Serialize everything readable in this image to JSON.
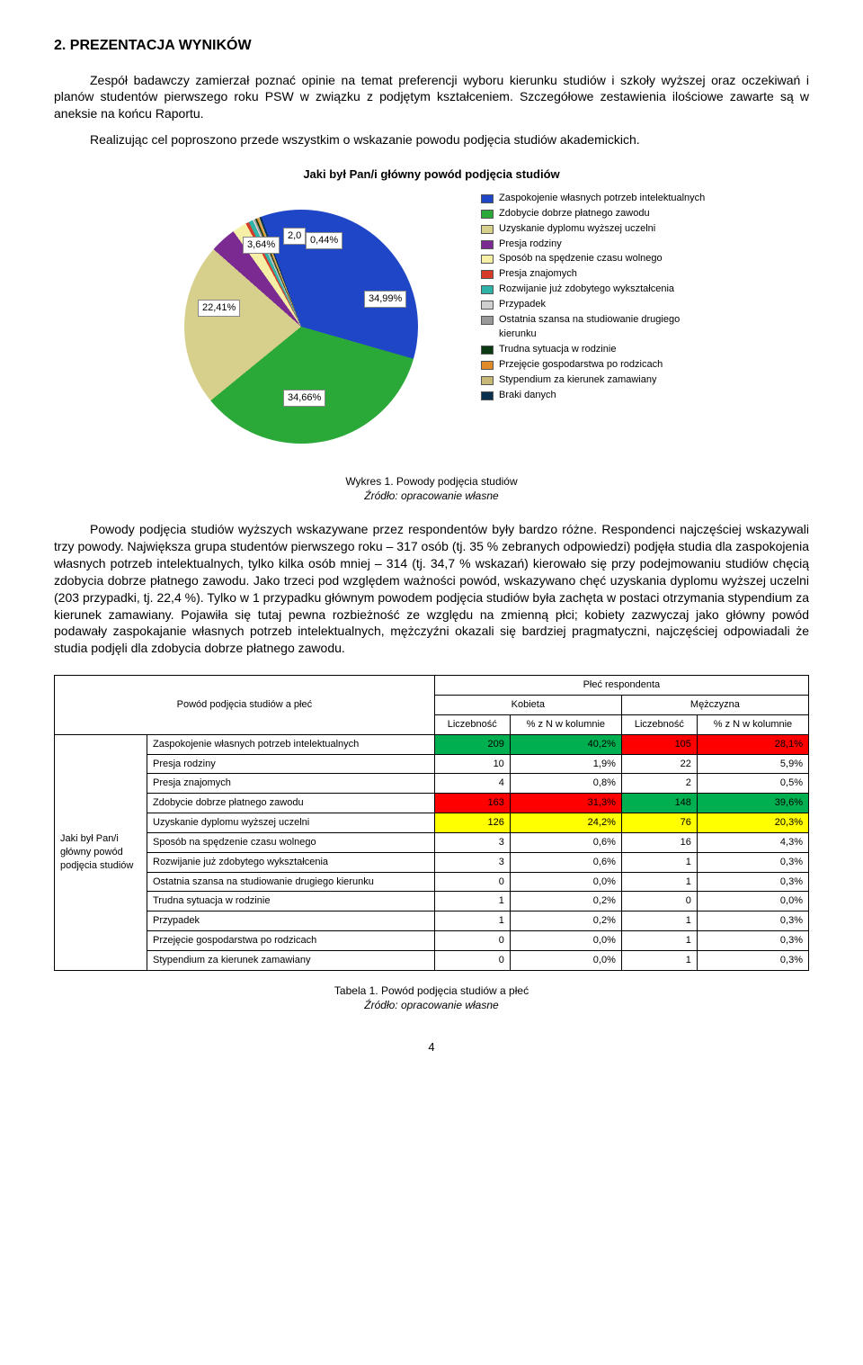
{
  "heading": "2. PREZENTACJA WYNIKÓW",
  "para1": "Zespół badawczy zamierzał poznać opinie na temat preferencji wyboru kierunku studiów i szkoły wyższej oraz oczekiwań i planów studentów pierwszego roku PSW w związku z podjętym kształceniem. Szczegółowe zestawienia ilościowe zawarte są w aneksie na końcu Raportu.",
  "para1b": "Realizując cel poproszono przede wszystkim o wskazanie powodu podjęcia studiów akademickich.",
  "chart": {
    "title": "Jaki był Pan/i główny powód podjęcia studiów",
    "slices": [
      {
        "label": "Zaspokojenie własnych potrzeb intelektualnych",
        "pct": 34.99,
        "color": "#2046c8"
      },
      {
        "label": "Zdobycie dobrze płatnego zawodu",
        "pct": 34.66,
        "color": "#2aa838"
      },
      {
        "label": "Uzyskanie dyplomu wyższej uczelni",
        "pct": 22.41,
        "color": "#d7cf8c"
      },
      {
        "label": "Presja rodziny",
        "pct": 3.64,
        "color": "#7a2a90"
      },
      {
        "label": "Sposób na spędzenie czasu wolnego",
        "pct": 2.0,
        "color": "#f6f0a6"
      },
      {
        "label": "Presja znajomych",
        "pct": 0.44,
        "color": "#d63a2a"
      },
      {
        "label": "Rozwijanie już zdobytego wykształcenia",
        "pct": 0.6,
        "color": "#2fb3a6"
      },
      {
        "label": "Przypadek",
        "pct": 0.2,
        "color": "#cfcfcf"
      },
      {
        "label": "Ostatnia szansa na studiowanie drugiego kierunku",
        "pct": 0.2,
        "color": "#999999"
      },
      {
        "label": "Trudna sytuacja w rodzinie",
        "pct": 0.2,
        "color": "#0a3a14"
      },
      {
        "label": "Przejęcie gospodarstwa po rodzicach",
        "pct": 0.2,
        "color": "#e08a2a"
      },
      {
        "label": "Stypendium za kierunek zamawiany",
        "pct": 0.2,
        "color": "#c8b878"
      },
      {
        "label": "Braki danych",
        "pct": 0.26,
        "color": "#0a3050"
      }
    ],
    "visible_labels": {
      "a": "34,99%",
      "b": "34,66%",
      "c": "22,41%",
      "d": "3,64%",
      "e": "2,0",
      "f": "0,44%"
    }
  },
  "caption1_a": "Wykres 1. Powody podjęcia studiów",
  "caption1_b": "Źródło: opracowanie własne",
  "para2": "Powody podjęcia studiów wyższych wskazywane przez respondentów były bardzo różne. Respondenci najczęściej wskazywali trzy powody. Największa grupa studentów pierwszego roku – 317 osób (tj. 35 % zebranych odpowiedzi) podjęła studia dla zaspokojenia własnych potrzeb intelektualnych, tylko kilka osób mniej – 314 (tj. 34,7 % wskazań) kierowało się przy podejmowaniu studiów chęcią zdobycia dobrze płatnego zawodu. Jako trzeci pod względem ważności powód, wskazywano chęć uzyskania dyplomu wyższej uczelni (203 przypadki, tj. 22,4 %). Tylko w 1 przypadku głównym powodem podjęcia studiów była zachęta w postaci otrzymania stypendium za kierunek zamawiany. Pojawiła się tutaj pewna rozbieżność ze względu na zmienną płci; kobiety zazwyczaj jako główny powód podawały zaspokajanie własnych potrzeb intelektualnych, mężczyźni okazali się bardziej pragmatyczni, najczęściej odpowiadali że studia podjęli dla zdobycia dobrze płatnego zawodu.",
  "table": {
    "header_main": "Powód podjęcia studiów a płeć",
    "header_group": "Płeć respondenta",
    "col_k": "Kobieta",
    "col_m": "Mężczyzna",
    "col_licz": "Liczebność",
    "col_pct": "% z N w kolumnie",
    "side_label": "Jaki był Pan/i główny powód podjęcia studiów",
    "rows": [
      {
        "label": "Zaspokojenie własnych potrzeb intelektualnych",
        "k_n": "209",
        "k_p": "40,2%",
        "m_n": "105",
        "m_p": "28,1%",
        "hl_kn": "green",
        "hl_kp": "green",
        "hl_mn": "red",
        "hl_mp": "red"
      },
      {
        "label": "Presja rodziny",
        "k_n": "10",
        "k_p": "1,9%",
        "m_n": "22",
        "m_p": "5,9%"
      },
      {
        "label": "Presja znajomych",
        "k_n": "4",
        "k_p": "0,8%",
        "m_n": "2",
        "m_p": "0,5%"
      },
      {
        "label": "Zdobycie dobrze płatnego zawodu",
        "k_n": "163",
        "k_p": "31,3%",
        "m_n": "148",
        "m_p": "39,6%",
        "hl_kn": "red",
        "hl_kp": "red",
        "hl_mn": "green",
        "hl_mp": "green"
      },
      {
        "label": "Uzyskanie dyplomu wyższej uczelni",
        "k_n": "126",
        "k_p": "24,2%",
        "m_n": "76",
        "m_p": "20,3%",
        "hl_kn": "yellow",
        "hl_kp": "yellow",
        "hl_mn": "yellow",
        "hl_mp": "yellow"
      },
      {
        "label": "Sposób na spędzenie czasu wolnego",
        "k_n": "3",
        "k_p": "0,6%",
        "m_n": "16",
        "m_p": "4,3%"
      },
      {
        "label": "Rozwijanie już zdobytego wykształcenia",
        "k_n": "3",
        "k_p": "0,6%",
        "m_n": "1",
        "m_p": "0,3%"
      },
      {
        "label": "Ostatnia szansa na studiowanie drugiego kierunku",
        "k_n": "0",
        "k_p": "0,0%",
        "m_n": "1",
        "m_p": "0,3%"
      },
      {
        "label": "Trudna sytuacja w rodzinie",
        "k_n": "1",
        "k_p": "0,2%",
        "m_n": "0",
        "m_p": "0,0%"
      },
      {
        "label": "Przypadek",
        "k_n": "1",
        "k_p": "0,2%",
        "m_n": "1",
        "m_p": "0,3%"
      },
      {
        "label": "Przejęcie gospodarstwa po rodzicach",
        "k_n": "0",
        "k_p": "0,0%",
        "m_n": "1",
        "m_p": "0,3%"
      },
      {
        "label": "Stypendium za kierunek zamawiany",
        "k_n": "0",
        "k_p": "0,0%",
        "m_n": "1",
        "m_p": "0,3%"
      }
    ]
  },
  "caption2_a": "Tabela 1. Powód podjęcia studiów a płeć",
  "caption2_b": "Źródło: opracowanie własne",
  "page_number": "4"
}
